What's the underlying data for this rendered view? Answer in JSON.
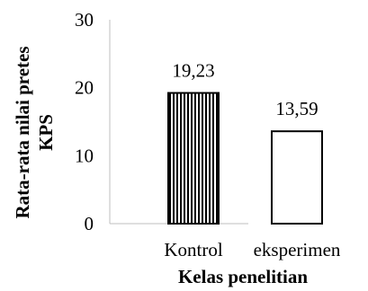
{
  "chart_data": {
    "type": "bar",
    "categories": [
      "Kontrol",
      "eksperimen"
    ],
    "values": [
      19.23,
      13.59
    ],
    "value_labels": [
      "19,23",
      "13,59"
    ],
    "xlabel": "Kelas penelitian",
    "ylabel": "Rata-rata nilai pretes KPS",
    "ylabel_lines": [
      "Rata-rata nilai pretes",
      "KPS"
    ],
    "ylim": [
      0,
      30
    ],
    "yticks": [
      0,
      10,
      20,
      30
    ],
    "ytick_labels": [
      "0",
      "10",
      "20",
      "30"
    ],
    "grid": false,
    "legend": "none",
    "bar_styles": [
      "vertical-stripes",
      "white-fill"
    ],
    "colors": {
      "stroke": "#000000",
      "stripe": "#000000",
      "fill_plain": "#ffffff",
      "axis": "#bfbfbf"
    }
  }
}
